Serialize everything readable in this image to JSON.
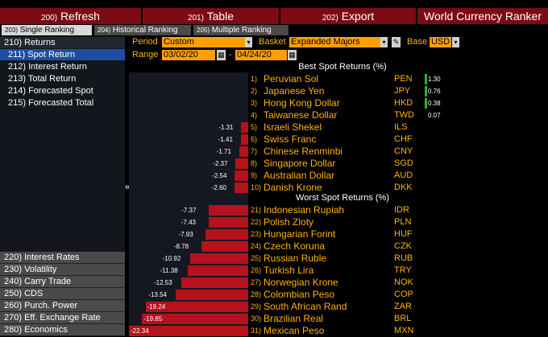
{
  "menu": {
    "items": [
      {
        "num": "200)",
        "label": "Refresh"
      },
      {
        "num": "201)",
        "label": "Table"
      },
      {
        "num": "202)",
        "label": "Export"
      }
    ],
    "title": "World Currency Ranker"
  },
  "tabs": [
    {
      "num": "203)",
      "label": "Single Ranking"
    },
    {
      "num": "204)",
      "label": "Historical Ranking"
    },
    {
      "num": "205)",
      "label": "Multiple Ranking"
    }
  ],
  "sidebar": {
    "returns": "210) Returns",
    "items": [
      "211) Spot Return",
      "212) Interest Return",
      "213) Total Return",
      "214) Forecasted Spot",
      "215) Forecasted Total"
    ],
    "bottom": [
      "220) Interest Rates",
      "230) Volatility",
      "240) Carry Trade",
      "250) CDS",
      "260) Purch. Power",
      "270) Eff. Exchange Rate",
      "280) Economics"
    ]
  },
  "controls": {
    "period_label": "Period",
    "period_value": "Custom",
    "basket_label": "Basket",
    "basket_value": "Expanded Majors",
    "base_label": "Base",
    "base_value": "USD",
    "range_label": "Range",
    "range_start": "03/02/20",
    "range_sep": "-",
    "range_end": "04/24/20"
  },
  "collapse_icon": "«",
  "chart_data": {
    "type": "bar",
    "best_title": "Best Spot Returns (%)",
    "worst_title": "Worst Spot Returns (%)",
    "best": [
      {
        "rank": "1)",
        "name": "Peruvian Sol",
        "code": "PEN",
        "value": 1.3,
        "label": "1.30"
      },
      {
        "rank": "2)",
        "name": "Japanese Yen",
        "code": "JPY",
        "value": 0.76,
        "label": "0.76"
      },
      {
        "rank": "3)",
        "name": "Hong Kong Dollar",
        "code": "HKD",
        "value": 0.38,
        "label": "0.38"
      },
      {
        "rank": "4)",
        "name": "Taiwanese Dollar",
        "code": "TWD",
        "value": 0.07,
        "label": "0.07"
      },
      {
        "rank": "5)",
        "name": "Israeli Shekel",
        "code": "ILS",
        "value": -1.31,
        "label": "-1.31"
      },
      {
        "rank": "6)",
        "name": "Swiss Franc",
        "code": "CHF",
        "value": -1.41,
        "label": "-1.41"
      },
      {
        "rank": "7)",
        "name": "Chinese Renminbi",
        "code": "CNY",
        "value": -1.71,
        "label": "-1.71"
      },
      {
        "rank": "8)",
        "name": "Singapore Dollar",
        "code": "SGD",
        "value": -2.37,
        "label": "-2.37"
      },
      {
        "rank": "9)",
        "name": "Australian Dollar",
        "code": "AUD",
        "value": -2.54,
        "label": "-2.54"
      },
      {
        "rank": "10)",
        "name": "Danish Krone",
        "code": "DKK",
        "value": -2.6,
        "label": "-2.60"
      }
    ],
    "worst": [
      {
        "rank": "21)",
        "name": "Indonesian Rupiah",
        "code": "IDR",
        "value": -7.37,
        "label": "-7.37"
      },
      {
        "rank": "22)",
        "name": "Polish Zloty",
        "code": "PLN",
        "value": -7.43,
        "label": "-7.43"
      },
      {
        "rank": "23)",
        "name": "Hungarian Forint",
        "code": "HUF",
        "value": -7.93,
        "label": "-7.93"
      },
      {
        "rank": "24)",
        "name": "Czech Koruna",
        "code": "CZK",
        "value": -8.78,
        "label": "-8.78"
      },
      {
        "rank": "25)",
        "name": "Russian Ruble",
        "code": "RUB",
        "value": -10.92,
        "label": "-10.92"
      },
      {
        "rank": "26)",
        "name": "Turkish Lira",
        "code": "TRY",
        "value": -11.38,
        "label": "-11.38"
      },
      {
        "rank": "27)",
        "name": "Norwegian Krone",
        "code": "NOK",
        "value": -12.53,
        "label": "-12.53"
      },
      {
        "rank": "28)",
        "name": "Colombian Peso",
        "code": "COP",
        "value": -13.54,
        "label": "-13.54"
      },
      {
        "rank": "29)",
        "name": "South African Rand",
        "code": "ZAR",
        "value": -19.24,
        "label": "-19.24"
      },
      {
        "rank": "30)",
        "name": "Brazilian Real",
        "code": "BRL",
        "value": -19.85,
        "label": "-19.85"
      },
      {
        "rank": "31)",
        "name": "Mexican Peso",
        "code": "MXN",
        "value": -22.34,
        "label": "-22.34"
      }
    ],
    "negative_min": -22.34,
    "colors": {
      "positive": "#2bb52b",
      "negative": "#b5121b",
      "text_accent": "#ffb400"
    }
  }
}
